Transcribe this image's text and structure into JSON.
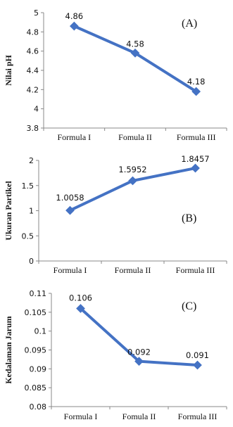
{
  "chart_data": [
    {
      "type": "line",
      "panel_label": "(A)",
      "ylabel": "Nilai pH",
      "categories": [
        "Formula I",
        "Fomula II",
        "Formula III"
      ],
      "values": [
        4.86,
        4.58,
        4.18
      ],
      "data_labels": [
        "4.86",
        "4.58",
        "4.18"
      ],
      "ylim": [
        3.8,
        5
      ],
      "yticks": [
        "3.8",
        "4",
        "4.2",
        "4.4",
        "4.6",
        "4.8",
        "5"
      ],
      "color": "#4472c4",
      "grid": false
    },
    {
      "type": "line",
      "panel_label": "(B)",
      "ylabel": "Ukuran Partikel",
      "categories": [
        "Formula I",
        "Formula II",
        "Formula III"
      ],
      "values": [
        1.0058,
        1.5952,
        1.8457
      ],
      "data_labels": [
        "1.0058",
        "1.5952",
        "1.8457"
      ],
      "ylim": [
        0,
        2
      ],
      "yticks": [
        "0",
        "0.5",
        "1",
        "1.5",
        "2"
      ],
      "color": "#4472c4",
      "grid": false
    },
    {
      "type": "line",
      "panel_label": "(C)",
      "ylabel": "Kedalaman Jarum",
      "categories": [
        "Formula I",
        "Fomula II",
        "Formula III"
      ],
      "values": [
        0.106,
        0.092,
        0.091
      ],
      "data_labels": [
        "0.106",
        "0.092",
        "0.091"
      ],
      "ylim": [
        0.08,
        0.11
      ],
      "yticks": [
        "0.08",
        "0.085",
        "0.09",
        "0.095",
        "0.1",
        "0.105",
        "0.11"
      ],
      "color": "#4472c4",
      "grid": false
    }
  ]
}
